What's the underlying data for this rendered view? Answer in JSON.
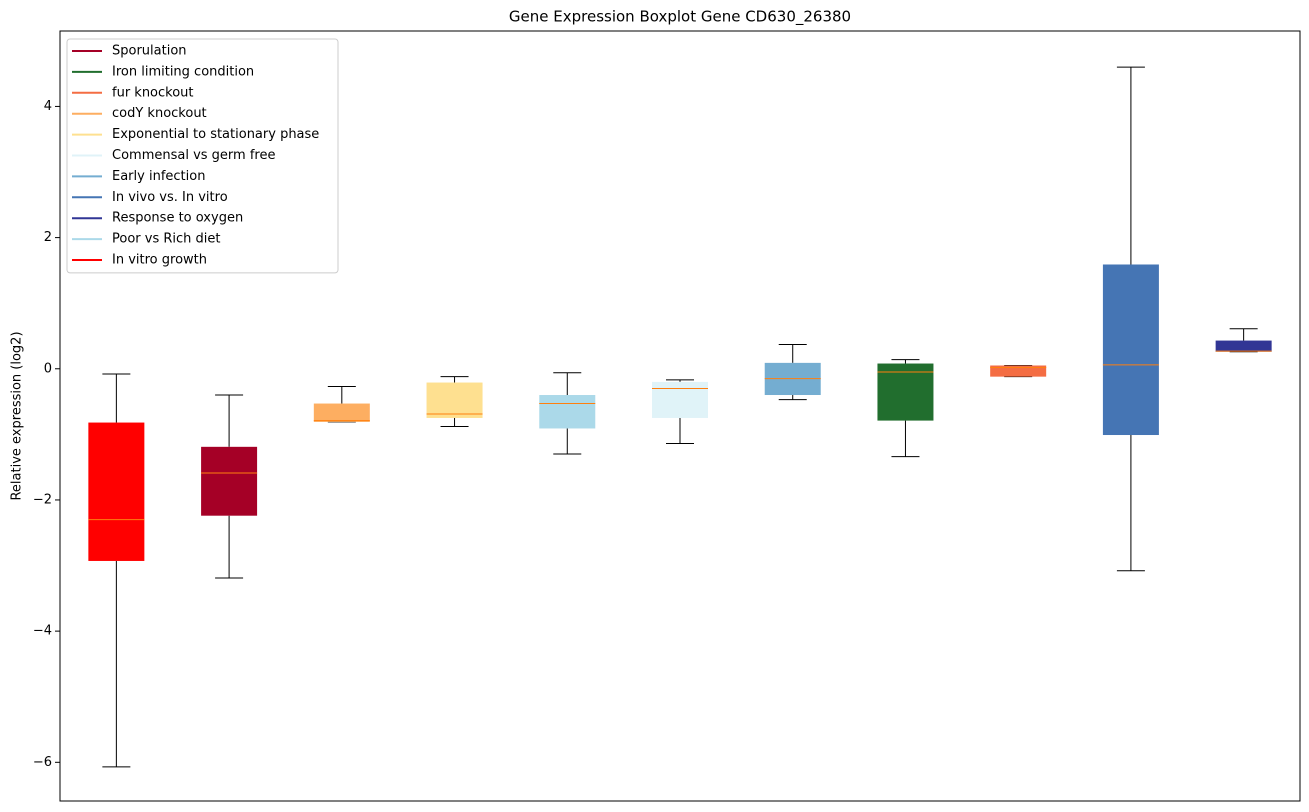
{
  "chart_data": {
    "type": "box",
    "title": "Gene Expression Boxplot Gene CD630_26380",
    "y_label": "Relative expression (log2)",
    "ylim": [
      -6.59,
      5.15
    ],
    "yticks": [
      {
        "value": -6,
        "label": "−6"
      },
      {
        "value": -4,
        "label": "−4"
      },
      {
        "value": -2,
        "label": "−2"
      },
      0,
      2,
      4
    ],
    "median_color": "#ff7f0e",
    "legend_position": "upper left",
    "legend": [
      {
        "name": "Sporulation",
        "color": "#a50026"
      },
      {
        "name": "Iron limiting condition",
        "color": "#216e2e"
      },
      {
        "name": "fur knockout",
        "color": "#f46d43"
      },
      {
        "name": "codY knockout",
        "color": "#fdae61"
      },
      {
        "name": "Exponential to stationary phase",
        "color": "#fee090"
      },
      {
        "name": "Commensal vs germ free",
        "color": "#e0f3f8"
      },
      {
        "name": "Early infection",
        "color": "#74add1"
      },
      {
        "name": "In vivo vs. In vitro",
        "color": "#4575b4"
      },
      {
        "name": "Response to oxygen",
        "color": "#313695"
      },
      {
        "name": "Poor vs Rich diet",
        "color": "#abd9e9"
      },
      {
        "name": "In vitro growth",
        "color": "#ff0000"
      }
    ],
    "boxes": [
      {
        "color": "#ff0000",
        "whislo": -6.07,
        "q1": -2.93,
        "med": -2.3,
        "q3": -0.82,
        "whishi": -0.08
      },
      {
        "color": "#a50026",
        "whislo": -3.19,
        "q1": -2.24,
        "med": -1.59,
        "q3": -1.19,
        "whishi": -0.4
      },
      {
        "color": "#fdae61",
        "whislo": -0.81,
        "q1": -0.81,
        "med": -0.79,
        "q3": -0.53,
        "whishi": -0.27
      },
      {
        "color": "#fee090",
        "whislo": -0.88,
        "q1": -0.75,
        "med": -0.69,
        "q3": -0.21,
        "whishi": -0.12
      },
      {
        "color": "#abd9e9",
        "whislo": -1.3,
        "q1": -0.91,
        "med": -0.53,
        "q3": -0.4,
        "whishi": -0.06
      },
      {
        "color": "#e0f3f8",
        "whislo": -1.14,
        "q1": -0.75,
        "med": -0.3,
        "q3": -0.2,
        "whishi": -0.17
      },
      {
        "color": "#74add1",
        "whislo": -0.47,
        "q1": -0.4,
        "med": -0.15,
        "q3": 0.09,
        "whishi": 0.37
      },
      {
        "color": "#216e2e",
        "whislo": -1.34,
        "q1": -0.79,
        "med": -0.05,
        "q3": 0.08,
        "whishi": 0.14
      },
      {
        "color": "#f46d43",
        "whislo": -0.12,
        "q1": -0.12,
        "med": 0.02,
        "q3": 0.05,
        "whishi": 0.05
      },
      {
        "color": "#4575b4",
        "whislo": -3.08,
        "q1": -1.01,
        "med": 0.06,
        "q3": 1.59,
        "whishi": 4.6
      },
      {
        "color": "#313695",
        "whislo": 0.26,
        "q1": 0.26,
        "med": 0.27,
        "q3": 0.43,
        "whishi": 0.61
      }
    ]
  }
}
